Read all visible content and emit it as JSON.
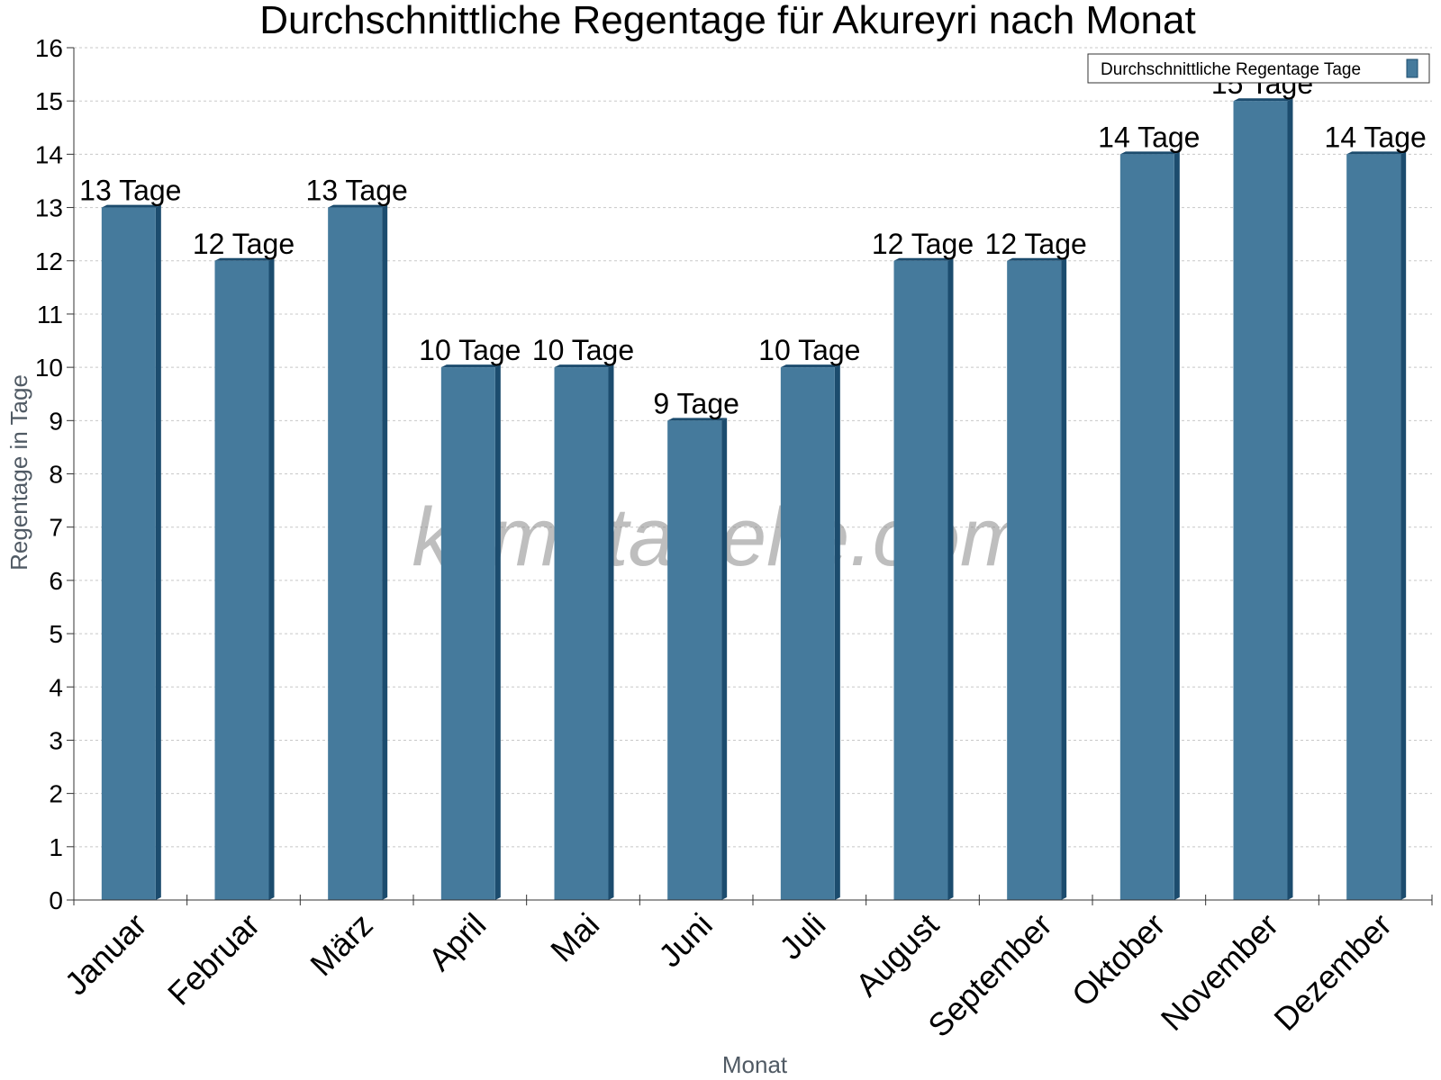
{
  "chart_data": {
    "type": "bar",
    "title": "Durchschnittliche Regentage für Akureyri nach Monat",
    "xlabel": "Monat",
    "ylabel": "Regentage in Tage",
    "ylim": [
      0,
      16
    ],
    "yticks": [
      "0",
      "1",
      "2",
      "3",
      "4",
      "5",
      "6",
      "7",
      "8",
      "9",
      "10",
      "11",
      "12",
      "13",
      "14",
      "15",
      "16"
    ],
    "grid": true,
    "legend_position": "top-right",
    "categories": [
      "Januar",
      "Februar",
      "März",
      "April",
      "Mai",
      "Juni",
      "Juli",
      "August",
      "September",
      "Oktober",
      "November",
      "Dezember"
    ],
    "series": [
      {
        "name": "Durchschnittliche Regentage Tage",
        "values": [
          13,
          12,
          13,
          10,
          10,
          9,
          10,
          12,
          12,
          14,
          15,
          14
        ],
        "labels": [
          "13 Tage",
          "12 Tage",
          "13 Tage",
          "10 Tage",
          "10 Tage",
          "9 Tage",
          "10 Tage",
          "12 Tage",
          "12 Tage",
          "14 Tage",
          "15 Tage",
          "14 Tage"
        ]
      }
    ],
    "watermark": "klimatabelle.com"
  },
  "colors": {
    "bar_front": "#457a9c",
    "bar_side": "#1c4c6e",
    "bar_top": "#1c4c6e",
    "grid": "#c8c8c8",
    "axis": "#333333"
  }
}
